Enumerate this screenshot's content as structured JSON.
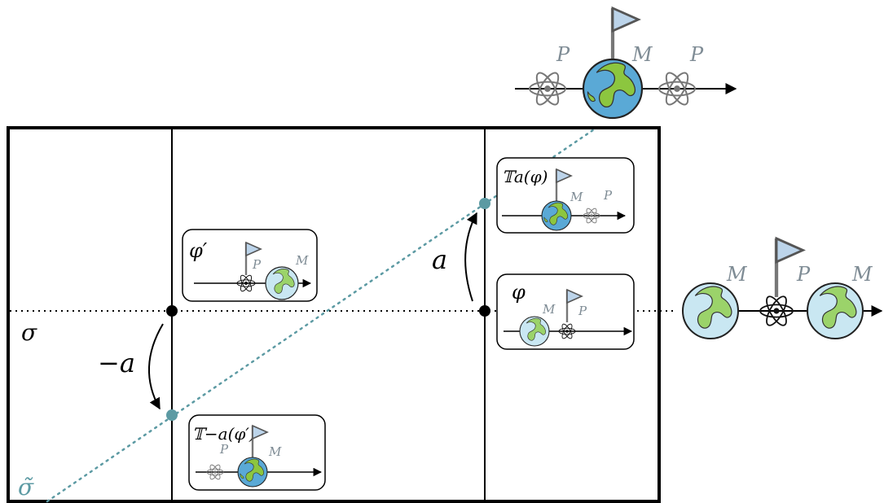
{
  "labels": {
    "sigma": "σ",
    "sigma_tilde": "σ̃",
    "minus_a": "−a",
    "a": "a"
  },
  "panels": {
    "phi_prime": {
      "title": "φ′",
      "P": "P",
      "M": "M"
    },
    "phi": {
      "title": "φ",
      "M": "M",
      "P": "P"
    },
    "T_a_phi": {
      "title": "𝕋a(φ)",
      "M": "M",
      "P": "P"
    },
    "T_minus_a_phi_prime": {
      "title": "𝕋−a(φ′)",
      "P": "P",
      "M": "M"
    }
  },
  "top_diagram": {
    "P_left": "P",
    "M": "M",
    "P_right": "P"
  },
  "right_diagram": {
    "M_left": "M",
    "P": "P",
    "M_right": "M"
  },
  "colors": {
    "teal": "#5c9aa3",
    "earth_blue": "#5aa9d6",
    "earth_green": "#8cc63f",
    "flag": "#bcd4ea",
    "label_grey": "#7f8c95"
  }
}
